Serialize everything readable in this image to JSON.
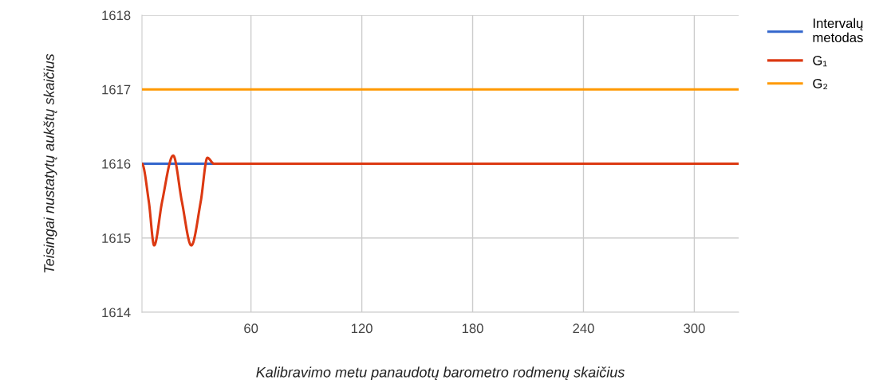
{
  "chart_data": {
    "type": "line",
    "xlabel": "Kalibravimo metu panaudotų barometro rodmenų skaičius",
    "ylabel": "Teisingai nustatytų aukštų skaičius",
    "xlim": [
      1,
      324
    ],
    "xticks": [
      60,
      120,
      180,
      240,
      300
    ],
    "ylim": [
      1614,
      1618
    ],
    "yticks": [
      1614,
      1615,
      1616,
      1617,
      1618
    ],
    "grid": true,
    "legend": "top right",
    "line_style": "solid",
    "marker": "none",
    "series": [
      {
        "name": "Intervalų metodas",
        "color": "#3366cc",
        "x": [
          1,
          40
        ],
        "values": [
          1616,
          1616
        ]
      },
      {
        "name": "G₁",
        "color": "#dc3912",
        "x": [
          1,
          4.7,
          7.6,
          11.9,
          17.9,
          22.6,
          27.7,
          32.8,
          36.4,
          40,
          324
        ],
        "values": [
          1616,
          1615.49,
          1614.9,
          1615.49,
          1616.11,
          1615.49,
          1614.9,
          1615.49,
          1616.08,
          1616,
          1616
        ]
      },
      {
        "name": "G₂",
        "color": "#ff9900",
        "x": [
          1,
          324
        ],
        "values": [
          1617,
          1617
        ]
      }
    ]
  }
}
